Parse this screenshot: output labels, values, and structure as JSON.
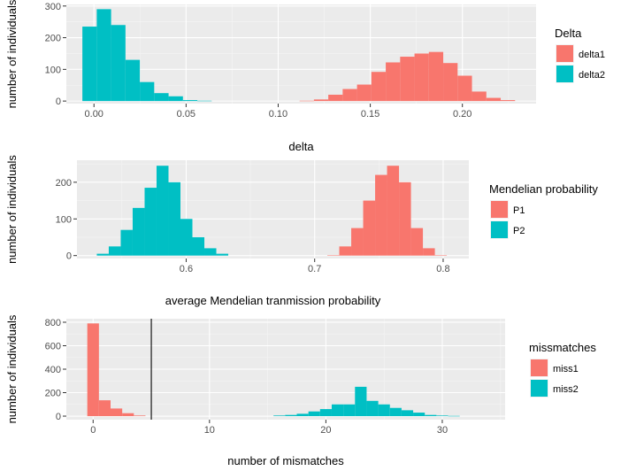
{
  "chart_data": [
    {
      "type": "histogram",
      "xlabel": "delta",
      "ylabel": "number of individuals",
      "xlim": [
        -0.015,
        0.24
      ],
      "ylim": [
        -8,
        305
      ],
      "xticks": [
        0.0,
        0.05,
        0.1,
        0.15,
        0.2
      ],
      "xtick_labels": [
        "0.00",
        "0.05",
        "0.10",
        "0.15",
        "0.20"
      ],
      "yticks": [
        0,
        100,
        200,
        300
      ],
      "ytick_labels": [
        "0",
        "100",
        "200",
        "300"
      ],
      "grid": true,
      "legend": {
        "title": "Delta",
        "position": "right"
      },
      "series": [
        {
          "name": "delta1",
          "color": "#F8766D",
          "bin_width": 0.0078,
          "bins_x": [
            0.1155,
            0.1233,
            0.1311,
            0.1389,
            0.1467,
            0.1545,
            0.1623,
            0.1701,
            0.1779,
            0.1857,
            0.1935,
            0.2013,
            0.2091,
            0.2169,
            0.2247
          ],
          "counts": [
            1,
            5,
            20,
            38,
            52,
            92,
            122,
            140,
            150,
            155,
            120,
            80,
            30,
            10,
            3
          ]
        },
        {
          "name": "delta2",
          "color": "#00BFC4",
          "bin_width": 0.0078,
          "bins_x": [
            -0.0024,
            0.0054,
            0.0132,
            0.021,
            0.0288,
            0.0366,
            0.0444,
            0.0522,
            0.06
          ],
          "counts": [
            235,
            290,
            240,
            130,
            60,
            25,
            15,
            3,
            1
          ]
        }
      ]
    },
    {
      "type": "histogram",
      "xlabel": "average Mendelian tranmission probability",
      "ylabel": "number of individuals",
      "xlim": [
        0.515,
        0.82
      ],
      "ylim": [
        -8,
        260
      ],
      "xticks": [
        0.6,
        0.7,
        0.8
      ],
      "xtick_labels": [
        "0.6",
        "0.7",
        "0.8"
      ],
      "yticks": [
        0,
        100,
        200
      ],
      "ytick_labels": [
        "0",
        "100",
        "200"
      ],
      "grid": true,
      "legend": {
        "title": "Mendelian probability",
        "position": "right"
      },
      "series": [
        {
          "name": "P1",
          "color": "#F8766D",
          "bin_width": 0.0093,
          "bins_x": [
            0.7145,
            0.7238,
            0.7331,
            0.7424,
            0.7517,
            0.761,
            0.7703,
            0.7796,
            0.7889,
            0.7982
          ],
          "counts": [
            1,
            25,
            75,
            150,
            220,
            245,
            200,
            75,
            20,
            1
          ]
        },
        {
          "name": "P2",
          "color": "#00BFC4",
          "bin_width": 0.0093,
          "bins_x": [
            0.5351,
            0.5444,
            0.5537,
            0.563,
            0.5723,
            0.5816,
            0.5909,
            0.6002,
            0.6095,
            0.6188,
            0.6281
          ],
          "counts": [
            5,
            25,
            70,
            130,
            185,
            245,
            200,
            100,
            50,
            20,
            5
          ]
        }
      ]
    },
    {
      "type": "histogram",
      "xlabel": "number of mismatches",
      "ylabel": "number of individuals",
      "xlim": [
        -2.3,
        35.4
      ],
      "ylim": [
        -30,
        830
      ],
      "xticks": [
        0,
        10,
        20,
        30
      ],
      "xtick_labels": [
        "0",
        "10",
        "20",
        "30"
      ],
      "yticks": [
        0,
        200,
        400,
        600,
        800
      ],
      "ytick_labels": [
        "0",
        "200",
        "400",
        "600",
        "800"
      ],
      "grid": true,
      "vline": 5,
      "legend": {
        "title": "missmatches",
        "position": "right"
      },
      "series": [
        {
          "name": "miss1",
          "color": "#F8766D",
          "bin_width": 1.0,
          "bins_x": [
            0,
            1,
            2,
            3,
            4
          ],
          "counts": [
            790,
            135,
            65,
            25,
            5
          ]
        },
        {
          "name": "miss2",
          "color": "#00BFC4",
          "bin_width": 1.0,
          "bins_x": [
            16,
            17,
            18,
            19,
            20,
            21,
            22,
            23,
            24,
            25,
            26,
            27,
            28,
            29,
            30,
            31
          ],
          "counts": [
            5,
            10,
            20,
            40,
            60,
            100,
            100,
            250,
            130,
            100,
            70,
            50,
            30,
            10,
            5,
            2
          ]
        }
      ]
    }
  ]
}
